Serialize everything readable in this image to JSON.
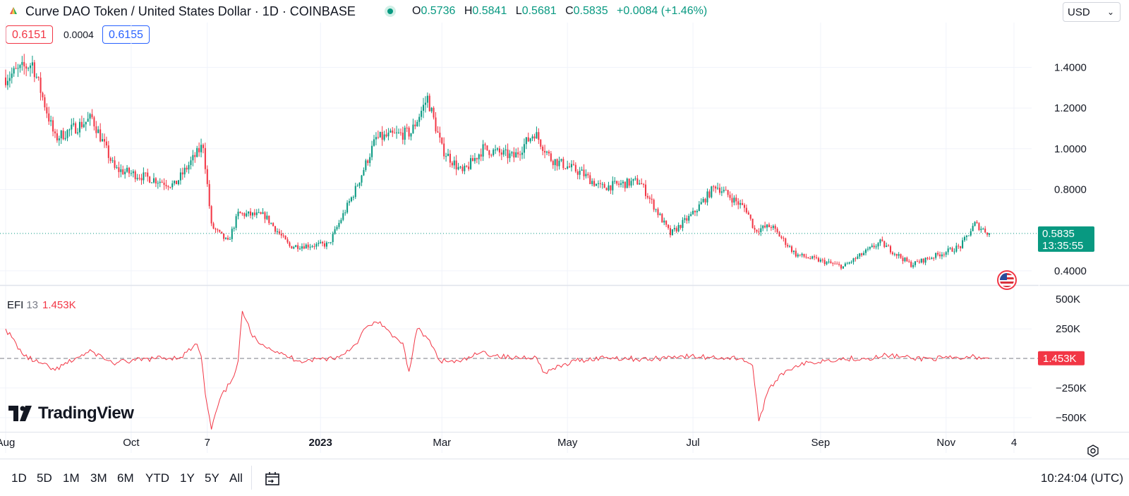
{
  "header": {
    "title": "Curve DAO Token / United States Dollar · 1D · COINBASE",
    "ohlc": [
      {
        "key": "O",
        "value": "0.5736"
      },
      {
        "key": "H",
        "value": "0.5841"
      },
      {
        "key": "L",
        "value": "0.5681"
      },
      {
        "key": "C",
        "value": "0.5835"
      }
    ],
    "change": "+0.0084 (+1.46%)",
    "currency": "USD"
  },
  "price_boxes": {
    "bid": "0.6151",
    "spread": "0.0004",
    "ask": "0.6155"
  },
  "last_price": {
    "value": "0.5835",
    "countdown": "13:35:55"
  },
  "efi": {
    "name": "EFI",
    "period": "13",
    "value": "1.453K",
    "badge": "1.453K"
  },
  "brand": "TradingView",
  "range_buttons": [
    "1D",
    "5D",
    "1M",
    "3M",
    "6M",
    "YTD",
    "1Y",
    "5Y",
    "All"
  ],
  "time_status": "10:24:04 (UTC)",
  "colors": {
    "up": "#089981",
    "down": "#f23645",
    "efi_line": "#f23645",
    "accent": "#2962ff"
  },
  "icons": {
    "settings": "gear-icon",
    "calendar": "calendar-goto-icon",
    "flag": "us-flag-icon",
    "market_status": "market-open-dot"
  },
  "chart_data": [
    {
      "type": "candlestick",
      "title": "Curve DAO Token / United States Dollar · 1D · COINBASE",
      "ylim": [
        0.33,
        1.62
      ],
      "y_ticks": [
        "1.4000",
        "1.2000",
        "1.0000",
        "0.8000",
        "0.4000"
      ],
      "x_ticks": [
        "Aug",
        "Oct",
        "7",
        "2023",
        "Mar",
        "May",
        "Jul",
        "Sep",
        "Nov",
        "4"
      ],
      "last_price": 0.5835,
      "trend_anchors": [
        {
          "x": "Aug 1 2022",
          "y": 1.35
        },
        {
          "x": "Aug 14 2022",
          "y": 1.42
        },
        {
          "x": "Aug 25 2022",
          "y": 1.05
        },
        {
          "x": "Sep 12 2022",
          "y": 1.15
        },
        {
          "x": "Sep 23 2022",
          "y": 0.9
        },
        {
          "x": "Oct 12 2022",
          "y": 0.85
        },
        {
          "x": "Oct 22 2022",
          "y": 0.82
        },
        {
          "x": "Nov 5 2022",
          "y": 1.02
        },
        {
          "x": "Nov 9 2022",
          "y": 0.62
        },
        {
          "x": "Nov 17 2022",
          "y": 0.54
        },
        {
          "x": "Nov 22 2022",
          "y": 0.68
        },
        {
          "x": "Dec 5 2022",
          "y": 0.67
        },
        {
          "x": "Dec 17 2022",
          "y": 0.52
        },
        {
          "x": "Jan 5 2023",
          "y": 0.53
        },
        {
          "x": "Jan 18 2023",
          "y": 0.8
        },
        {
          "x": "Jan 28 2023",
          "y": 1.05
        },
        {
          "x": "Feb 14 2023",
          "y": 1.08
        },
        {
          "x": "Feb 22 2023",
          "y": 1.25
        },
        {
          "x": "Mar 1 2023",
          "y": 1.0
        },
        {
          "x": "Mar 11 2023",
          "y": 0.88
        },
        {
          "x": "Mar 21 2023",
          "y": 1.0
        },
        {
          "x": "Apr 5 2023",
          "y": 0.96
        },
        {
          "x": "Apr 15 2023",
          "y": 1.08
        },
        {
          "x": "Apr 23 2023",
          "y": 0.95
        },
        {
          "x": "May 8 2023",
          "y": 0.88
        },
        {
          "x": "May 17 2023",
          "y": 0.81
        },
        {
          "x": "Jun 5 2023",
          "y": 0.84
        },
        {
          "x": "Jun 20 2023",
          "y": 0.58
        },
        {
          "x": "Jul 1 2023",
          "y": 0.68
        },
        {
          "x": "Jul 12 2023",
          "y": 0.82
        },
        {
          "x": "Jul 27 2023",
          "y": 0.7
        },
        {
          "x": "Jul 31 2023",
          "y": 0.6
        },
        {
          "x": "Aug 8 2023",
          "y": 0.62
        },
        {
          "x": "Aug 20 2023",
          "y": 0.48
        },
        {
          "x": "Sep 12 2023",
          "y": 0.42
        },
        {
          "x": "Sep 30 2023",
          "y": 0.54
        },
        {
          "x": "Oct 15 2023",
          "y": 0.43
        },
        {
          "x": "Nov 8 2023",
          "y": 0.52
        },
        {
          "x": "Nov 15 2023",
          "y": 0.63
        },
        {
          "x": "Nov 22 2023",
          "y": 0.5835
        }
      ]
    },
    {
      "type": "line",
      "name": "EFI 13",
      "ylim": [
        -620000,
        620000
      ],
      "y_ticks": [
        "500K",
        "250K",
        "−250K",
        "−500K"
      ],
      "last_value": 1453,
      "points": [
        {
          "x": "Aug 1 2022",
          "y": 250000
        },
        {
          "x": "Aug 10 2022",
          "y": 20000
        },
        {
          "x": "Aug 25 2022",
          "y": -100000
        },
        {
          "x": "Sep 5 2022",
          "y": 10000
        },
        {
          "x": "Sep 12 2022",
          "y": 60000
        },
        {
          "x": "Sep 22 2022",
          "y": -40000
        },
        {
          "x": "Oct 12 2022",
          "y": 0
        },
        {
          "x": "Oct 25 2022",
          "y": 10000
        },
        {
          "x": "Nov 2 2022",
          "y": 120000
        },
        {
          "x": "Nov 4 2022",
          "y": 20000
        },
        {
          "x": "Nov 6 2022",
          "y": -300000
        },
        {
          "x": "Nov 9 2022",
          "y": -600000
        },
        {
          "x": "Nov 13 2022",
          "y": -350000
        },
        {
          "x": "Nov 19 2022",
          "y": -180000
        },
        {
          "x": "Nov 22 2022",
          "y": -20000
        },
        {
          "x": "Nov 24 2022",
          "y": 400000
        },
        {
          "x": "Nov 29 2022",
          "y": 180000
        },
        {
          "x": "Dec 12 2022",
          "y": 40000
        },
        {
          "x": "Dec 22 2022",
          "y": -20000
        },
        {
          "x": "Jan 10 2023",
          "y": 10000
        },
        {
          "x": "Jan 18 2023",
          "y": 120000
        },
        {
          "x": "Jan 23 2023",
          "y": 260000
        },
        {
          "x": "Jan 30 2023",
          "y": 310000
        },
        {
          "x": "Feb 5 2023",
          "y": 180000
        },
        {
          "x": "Feb 10 2023",
          "y": 130000
        },
        {
          "x": "Feb 13 2023",
          "y": -110000
        },
        {
          "x": "Feb 17 2023",
          "y": 250000
        },
        {
          "x": "Feb 22 2023",
          "y": 170000
        },
        {
          "x": "Feb 28 2023",
          "y": -20000
        },
        {
          "x": "Mar 10 2023",
          "y": -30000
        },
        {
          "x": "Mar 20 2023",
          "y": 50000
        },
        {
          "x": "Apr 5 2023",
          "y": 0
        },
        {
          "x": "Apr 15 2023",
          "y": 20000
        },
        {
          "x": "Apr 20 2023",
          "y": -120000
        },
        {
          "x": "May 5 2023",
          "y": -20000
        },
        {
          "x": "May 20 2023",
          "y": 10000
        },
        {
          "x": "Jun 10 2023",
          "y": -10000
        },
        {
          "x": "Jun 22 2023",
          "y": 20000
        },
        {
          "x": "Jul 10 2023",
          "y": 10000
        },
        {
          "x": "Jul 25 2023",
          "y": 0
        },
        {
          "x": "Jul 30 2023",
          "y": -60000
        },
        {
          "x": "Aug 2 2023",
          "y": -530000
        },
        {
          "x": "Aug 6 2023",
          "y": -300000
        },
        {
          "x": "Aug 12 2023",
          "y": -140000
        },
        {
          "x": "Aug 20 2023",
          "y": -60000
        },
        {
          "x": "Sep 5 2023",
          "y": -10000
        },
        {
          "x": "Sep 30 2023",
          "y": 10000
        },
        {
          "x": "Oct 3 2023",
          "y": 30000
        },
        {
          "x": "Oct 15 2023",
          "y": 0
        },
        {
          "x": "Nov 10 2023",
          "y": 0
        },
        {
          "x": "Nov 15 2023",
          "y": 15000
        },
        {
          "x": "Nov 22 2023",
          "y": 1453
        }
      ]
    }
  ]
}
